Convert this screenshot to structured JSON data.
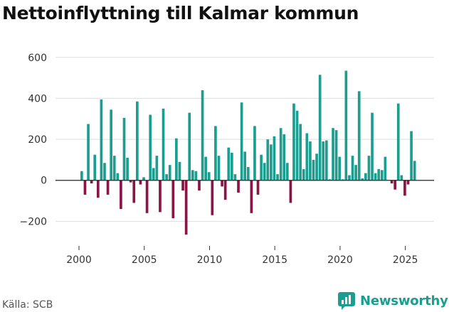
{
  "title": "Nettoinflyttning till Kalmar kommun",
  "source": "Källa: SCB",
  "brand": {
    "name": "Newsworthy",
    "icon": "newsworthy-logo-icon"
  },
  "colors": {
    "positive": "#1b9e8f",
    "negative": "#8b1446",
    "grid": "#dddddd",
    "zero": "#222222",
    "brand": "#1b9e8f"
  },
  "chart_data": {
    "type": "bar",
    "title": "Nettoinflyttning till Kalmar kommun",
    "xlabel": "",
    "ylabel": "",
    "ylim": [
      -320,
      620
    ],
    "xlim": [
      1998.2,
      2027.2
    ],
    "grid": true,
    "yticks": [
      600,
      400,
      200,
      0,
      -200
    ],
    "ytick_labels": [
      "600",
      "400",
      "200",
      "0",
      "−200"
    ],
    "xticks": [
      2000,
      2005,
      2010,
      2015,
      2020,
      2025
    ],
    "xtick_labels": [
      "2000",
      "2005",
      "2010",
      "2015",
      "2020",
      "2025"
    ],
    "bar_width_years": 0.2,
    "start": 2000.21,
    "step": 0.25,
    "values": [
      45,
      -70,
      275,
      -15,
      125,
      -85,
      395,
      85,
      -70,
      345,
      120,
      35,
      -140,
      305,
      110,
      -10,
      -110,
      385,
      -20,
      15,
      -160,
      320,
      60,
      120,
      -155,
      350,
      30,
      75,
      -185,
      205,
      90,
      -50,
      -265,
      330,
      50,
      45,
      -50,
      440,
      115,
      40,
      -170,
      265,
      120,
      -30,
      -95,
      160,
      135,
      30,
      -60,
      380,
      140,
      65,
      -160,
      265,
      -70,
      125,
      85,
      200,
      175,
      215,
      30,
      255,
      225,
      85,
      -110,
      375,
      340,
      275,
      55,
      230,
      190,
      100,
      130,
      515,
      190,
      195,
      5,
      255,
      245,
      115,
      5,
      535,
      25,
      120,
      75,
      435,
      10,
      35,
      120,
      330,
      35,
      55,
      50,
      115,
      0,
      -15,
      -45,
      375,
      25,
      -75,
      -20,
      240,
      95
    ]
  }
}
